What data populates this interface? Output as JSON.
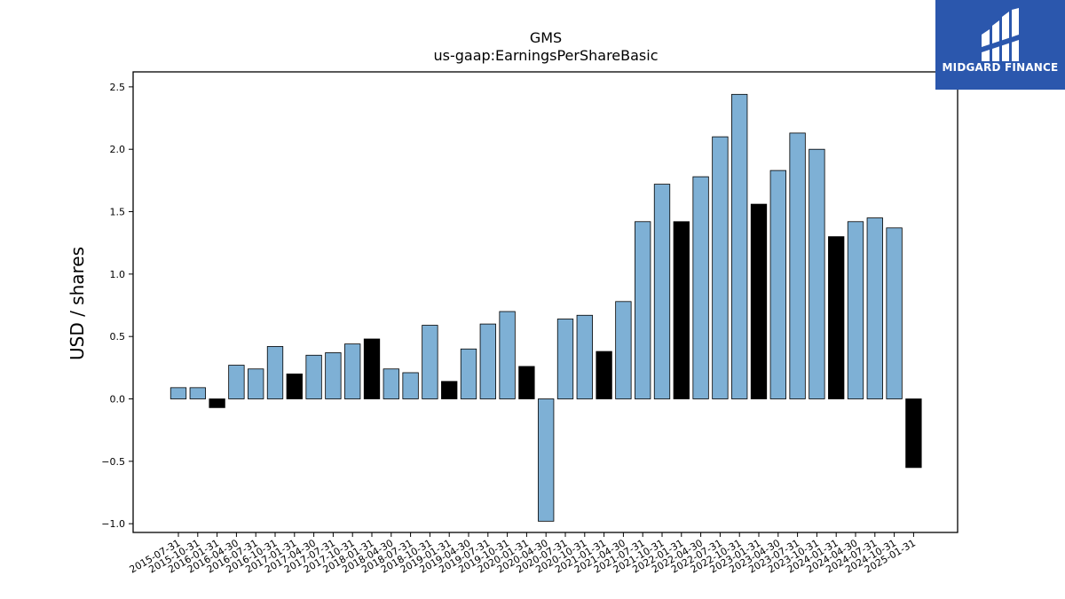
{
  "brand": {
    "name": "MIDGARD FINANCE",
    "background_color": "#2b57ad",
    "icon": "midgard-logo-icon"
  },
  "chart_data": {
    "type": "bar",
    "title": "GMS",
    "subtitle": "us-gaap:EarningsPerShareBasic",
    "xlabel": "",
    "ylabel": "USD / shares",
    "ylim": [
      -1.07,
      2.62
    ],
    "yticks": [
      -1.0,
      -0.5,
      0.0,
      0.5,
      1.0,
      1.5,
      2.0,
      2.5
    ],
    "grid": false,
    "colors": {
      "quarterly": "#7eb0d5",
      "annual": "#000000",
      "edge": "#000000"
    },
    "categories": [
      "2015-07-31",
      "2015-10-31",
      "2016-01-31",
      "2016-04-30",
      "2016-07-31",
      "2016-10-31",
      "2017-01-31",
      "2017-04-30",
      "2017-07-31",
      "2017-10-31",
      "2018-01-31",
      "2018-04-30",
      "2018-07-31",
      "2018-10-31",
      "2019-01-31",
      "2019-04-30",
      "2019-07-31",
      "2019-10-31",
      "2020-01-31",
      "2020-04-30",
      "2020-07-31",
      "2020-10-31",
      "2021-01-31",
      "2021-04-30",
      "2021-07-31",
      "2021-10-31",
      "2022-01-31",
      "2022-04-30",
      "2022-07-31",
      "2022-10-31",
      "2023-01-31",
      "2023-04-30",
      "2023-07-31",
      "2023-10-31",
      "2024-01-31",
      "2024-04-30",
      "2024-07-31",
      "2024-10-31",
      "2025-01-31"
    ],
    "values": [
      0.09,
      0.09,
      -0.07,
      0.27,
      0.24,
      0.42,
      0.2,
      0.35,
      0.37,
      0.44,
      0.48,
      0.24,
      0.21,
      0.59,
      0.14,
      0.4,
      0.6,
      0.7,
      0.26,
      -0.98,
      0.64,
      0.67,
      0.38,
      0.78,
      1.42,
      1.72,
      1.42,
      1.78,
      2.1,
      2.44,
      1.56,
      1.83,
      2.13,
      2.0,
      1.3,
      1.42,
      1.45,
      1.37,
      -0.55
    ],
    "annual": [
      false,
      false,
      true,
      false,
      false,
      false,
      true,
      false,
      false,
      false,
      true,
      false,
      false,
      false,
      true,
      false,
      false,
      false,
      true,
      false,
      false,
      false,
      true,
      false,
      false,
      false,
      true,
      false,
      false,
      false,
      true,
      false,
      false,
      false,
      true,
      false,
      false,
      false,
      true
    ]
  }
}
